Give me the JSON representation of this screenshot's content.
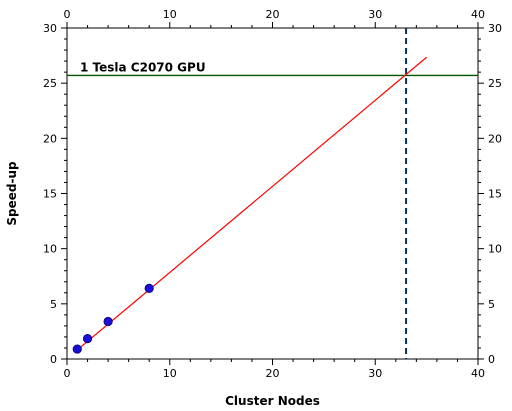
{
  "chart_data": {
    "type": "scatter",
    "title": "",
    "xlabel": "Cluster Nodes",
    "ylabel": "Speed-up",
    "xlim": [
      0,
      40
    ],
    "ylim": [
      0,
      30
    ],
    "x_ticks": [
      0,
      10,
      20,
      30,
      40
    ],
    "y_ticks": [
      0,
      5,
      10,
      15,
      20,
      25,
      30
    ],
    "mirror_axes": true,
    "grid": false,
    "points": {
      "x": [
        1,
        2,
        4,
        8
      ],
      "y": [
        0.9,
        1.85,
        3.4,
        6.4
      ],
      "color": "#1a0fd6"
    },
    "fit_line": {
      "x": [
        1,
        35
      ],
      "y": [
        0.82,
        27.35
      ],
      "color": "#ff0000"
    },
    "reference_line": {
      "y": 25.7,
      "label": "1 Tesla C2070 GPU",
      "color": "#005500"
    },
    "intersection_line": {
      "x": 33,
      "color": "#003355"
    }
  }
}
